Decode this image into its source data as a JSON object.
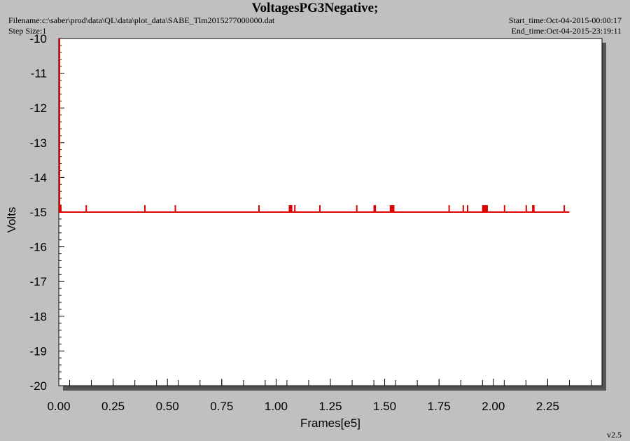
{
  "header": {
    "title": "VoltagesPG3Negative;",
    "filename": "Filename:c:\\saber\\prod\\data\\QL\\data\\plot_data\\SABE_Tlm2015277000000.dat",
    "step_size": "Step Size:1",
    "start_time": "Start_time:Oct-04-2015-00:00:17",
    "end_time": "End_time:Oct-04-2015-23:19:11",
    "version": "v2.5"
  },
  "colors": {
    "background": "#c0c0c0",
    "plot_area": "#ffffff",
    "series": "#e00000",
    "shadow": "#555555"
  },
  "chart_data": {
    "type": "line",
    "title": "VoltagesPG3Negative;",
    "xlabel": "Frames[e5]",
    "ylabel": "Volts",
    "xlim": [
      0,
      2.5
    ],
    "ylim": [
      -20,
      -10
    ],
    "x_ticks": [
      "0.00",
      "0.25",
      "0.50",
      "0.75",
      "1.00",
      "1.25",
      "1.50",
      "1.75",
      "2.00",
      "2.25"
    ],
    "y_ticks": [
      "-10",
      "-11",
      "-12",
      "-13",
      "-14",
      "-15",
      "-16",
      "-17",
      "-18",
      "-19",
      "-20"
    ],
    "grid": false,
    "legend": "none",
    "series": [
      {
        "baseline_value": -15.0,
        "x_range": [
          0,
          2.35
        ],
        "initial_spike": {
          "x": 0.0,
          "value": -10.0
        },
        "spikes": [
          {
            "x": 0.003,
            "value": -14.8
          },
          {
            "x": 0.12,
            "value": -14.8
          },
          {
            "x": 0.39,
            "value": -14.8
          },
          {
            "x": 0.53,
            "value": -14.8
          },
          {
            "x": 0.915,
            "value": -14.8
          },
          {
            "x": 1.055,
            "value": -14.8
          },
          {
            "x": 1.06,
            "value": -14.8
          },
          {
            "x": 1.065,
            "value": -14.8
          },
          {
            "x": 1.08,
            "value": -14.8
          },
          {
            "x": 1.195,
            "value": -14.8
          },
          {
            "x": 1.365,
            "value": -14.8
          },
          {
            "x": 1.445,
            "value": -14.8
          },
          {
            "x": 1.45,
            "value": -14.8
          },
          {
            "x": 1.52,
            "value": -14.8
          },
          {
            "x": 1.525,
            "value": -14.8
          },
          {
            "x": 1.53,
            "value": -14.8
          },
          {
            "x": 1.535,
            "value": -14.8
          },
          {
            "x": 1.79,
            "value": -14.8
          },
          {
            "x": 1.855,
            "value": -14.8
          },
          {
            "x": 1.875,
            "value": -14.8
          },
          {
            "x": 1.945,
            "value": -14.8
          },
          {
            "x": 1.95,
            "value": -14.8
          },
          {
            "x": 1.955,
            "value": -14.8
          },
          {
            "x": 1.96,
            "value": -14.8
          },
          {
            "x": 1.965,
            "value": -14.8
          },
          {
            "x": 2.045,
            "value": -14.8
          },
          {
            "x": 2.145,
            "value": -14.8
          },
          {
            "x": 2.175,
            "value": -14.8
          },
          {
            "x": 2.18,
            "value": -14.8
          },
          {
            "x": 2.32,
            "value": -14.8
          }
        ]
      }
    ]
  }
}
